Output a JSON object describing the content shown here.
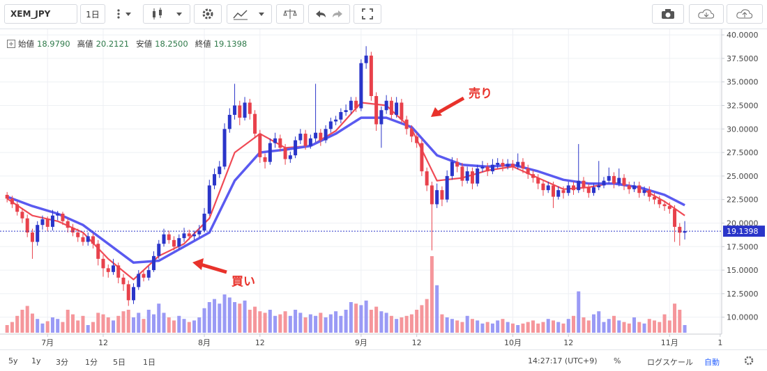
{
  "chart_data": {
    "type": "candlestick",
    "symbol": "XEM_JPY",
    "interval": "1日",
    "ohlc_legend": [
      {
        "label": "始値",
        "value": "18.9790"
      },
      {
        "label": "高値",
        "value": "20.2121"
      },
      {
        "label": "安値",
        "value": "18.2500"
      },
      {
        "label": "終値",
        "value": "19.1398"
      }
    ],
    "up_color": "#2a35c9",
    "down_color": "#e8414b",
    "vol_up_color": "#9a9af5",
    "vol_down_color": "#f5969b",
    "candles": [
      [
        23.0,
        23.3,
        22.2,
        22.6
      ],
      [
        22.6,
        22.9,
        21.6,
        22.0
      ],
      [
        22.0,
        22.3,
        20.8,
        21.2
      ],
      [
        21.2,
        21.6,
        20.0,
        20.5
      ],
      [
        20.5,
        20.9,
        18.5,
        19.0
      ],
      [
        19.0,
        19.4,
        16.2,
        18.0
      ],
      [
        18.0,
        20.2,
        17.6,
        19.8
      ],
      [
        19.8,
        20.8,
        19.3,
        20.4
      ],
      [
        20.4,
        20.7,
        19.1,
        19.6
      ],
      [
        19.6,
        21.4,
        19.2,
        20.8
      ],
      [
        20.8,
        21.3,
        20.3,
        21.0
      ],
      [
        21.0,
        21.2,
        19.8,
        20.2
      ],
      [
        20.2,
        20.5,
        19.0,
        19.5
      ],
      [
        19.5,
        19.9,
        18.6,
        19.0
      ],
      [
        19.0,
        19.4,
        18.0,
        18.5
      ],
      [
        18.5,
        18.9,
        17.6,
        18.0
      ],
      [
        18.0,
        19.0,
        17.6,
        18.6
      ],
      [
        18.6,
        18.9,
        17.3,
        17.8
      ],
      [
        17.8,
        18.2,
        15.5,
        16.2
      ],
      [
        16.2,
        16.6,
        14.3,
        15.2
      ],
      [
        15.2,
        15.6,
        14.2,
        14.8
      ],
      [
        14.8,
        16.2,
        14.5,
        15.5
      ],
      [
        15.5,
        15.8,
        13.6,
        14.2
      ],
      [
        14.2,
        14.6,
        12.8,
        13.5
      ],
      [
        13.5,
        13.9,
        11.2,
        11.8
      ],
      [
        11.8,
        13.6,
        11.4,
        13.2
      ],
      [
        13.2,
        15.0,
        12.9,
        14.6
      ],
      [
        14.6,
        15.0,
        13.8,
        14.2
      ],
      [
        14.2,
        15.4,
        13.9,
        15.0
      ],
      [
        15.0,
        17.0,
        14.8,
        16.5
      ],
      [
        16.5,
        18.2,
        16.2,
        17.8
      ],
      [
        17.8,
        19.4,
        17.5,
        18.8
      ],
      [
        18.8,
        19.2,
        17.8,
        18.2
      ],
      [
        18.2,
        18.6,
        17.1,
        17.5
      ],
      [
        17.5,
        18.8,
        17.2,
        18.4
      ],
      [
        18.4,
        19.5,
        18.0,
        18.9
      ],
      [
        18.9,
        19.3,
        18.2,
        18.6
      ],
      [
        18.6,
        19.2,
        18.2,
        18.8
      ],
      [
        18.8,
        19.8,
        18.5,
        19.2
      ],
      [
        19.2,
        21.6,
        19.0,
        21.0
      ],
      [
        21.0,
        24.6,
        20.8,
        24.0
      ],
      [
        24.0,
        25.8,
        23.6,
        25.2
      ],
      [
        25.2,
        26.6,
        24.8,
        26.0
      ],
      [
        26.0,
        30.6,
        25.7,
        30.0
      ],
      [
        30.0,
        32.2,
        29.6,
        31.5
      ],
      [
        31.5,
        34.8,
        31.0,
        32.5
      ],
      [
        32.5,
        33.0,
        30.4,
        31.2
      ],
      [
        31.2,
        33.4,
        30.9,
        32.8
      ],
      [
        32.8,
        33.2,
        31.0,
        31.6
      ],
      [
        31.6,
        32.0,
        29.0,
        29.5
      ],
      [
        29.5,
        29.9,
        26.4,
        27.0
      ],
      [
        27.0,
        27.4,
        25.8,
        26.5
      ],
      [
        26.5,
        29.0,
        26.2,
        28.5
      ],
      [
        28.5,
        29.6,
        28.0,
        29.0
      ],
      [
        29.0,
        29.4,
        27.6,
        28.0
      ],
      [
        28.0,
        28.4,
        26.2,
        26.8
      ],
      [
        26.8,
        27.6,
        26.4,
        27.2
      ],
      [
        27.2,
        29.2,
        26.9,
        28.8
      ],
      [
        28.8,
        30.0,
        28.4,
        29.5
      ],
      [
        29.5,
        29.9,
        27.8,
        28.2
      ],
      [
        28.2,
        29.4,
        27.9,
        29.0
      ],
      [
        29.0,
        34.8,
        28.6,
        29.6
      ],
      [
        29.6,
        30.0,
        28.2,
        28.8
      ],
      [
        28.8,
        30.4,
        28.5,
        30.0
      ],
      [
        30.0,
        31.2,
        29.6,
        30.8
      ],
      [
        30.8,
        31.4,
        30.4,
        31.0
      ],
      [
        31.0,
        32.2,
        30.6,
        31.8
      ],
      [
        31.8,
        32.6,
        31.4,
        32.0
      ],
      [
        32.0,
        33.4,
        31.6,
        33.0
      ],
      [
        33.0,
        33.4,
        31.8,
        32.2
      ],
      [
        32.2,
        37.4,
        31.9,
        37.0
      ],
      [
        37.0,
        38.8,
        36.4,
        37.8
      ],
      [
        37.8,
        38.2,
        33.0,
        33.5
      ],
      [
        33.5,
        33.9,
        29.8,
        30.5
      ],
      [
        30.5,
        32.4,
        28.0,
        32.0
      ],
      [
        32.0,
        33.6,
        31.6,
        33.0
      ],
      [
        33.0,
        33.4,
        31.0,
        31.5
      ],
      [
        31.5,
        33.4,
        31.2,
        32.8
      ],
      [
        32.8,
        33.2,
        30.6,
        31.0
      ],
      [
        31.0,
        31.4,
        29.4,
        30.0
      ],
      [
        30.0,
        30.4,
        28.6,
        29.2
      ],
      [
        29.2,
        29.6,
        28.0,
        28.5
      ],
      [
        28.5,
        28.9,
        25.0,
        25.5
      ],
      [
        25.5,
        25.9,
        23.4,
        24.0
      ],
      [
        24.0,
        24.4,
        17.1,
        22.0
      ],
      [
        22.0,
        24.2,
        21.6,
        23.5
      ],
      [
        23.5,
        23.9,
        21.8,
        22.5
      ],
      [
        22.5,
        25.6,
        22.2,
        25.0
      ],
      [
        25.0,
        27.0,
        24.6,
        26.5
      ],
      [
        26.5,
        26.9,
        25.4,
        26.0
      ],
      [
        26.0,
        26.4,
        23.9,
        24.5
      ],
      [
        24.5,
        26.0,
        24.2,
        25.5
      ],
      [
        25.5,
        25.9,
        23.6,
        24.2
      ],
      [
        24.2,
        26.2,
        23.9,
        25.8
      ],
      [
        25.8,
        26.6,
        25.4,
        26.0
      ],
      [
        26.0,
        26.4,
        25.0,
        25.5
      ],
      [
        25.5,
        26.8,
        25.2,
        26.2
      ],
      [
        26.2,
        26.9,
        25.8,
        26.4
      ],
      [
        26.4,
        26.8,
        25.5,
        26.0
      ],
      [
        26.0,
        26.8,
        25.7,
        26.3
      ],
      [
        26.3,
        26.7,
        25.6,
        26.0
      ],
      [
        26.0,
        27.4,
        25.7,
        26.5
      ],
      [
        26.5,
        26.9,
        25.3,
        25.8
      ],
      [
        25.8,
        26.2,
        24.7,
        25.2
      ],
      [
        25.2,
        25.6,
        24.3,
        24.8
      ],
      [
        24.8,
        25.2,
        23.6,
        24.2
      ],
      [
        24.2,
        24.6,
        22.9,
        23.5
      ],
      [
        23.5,
        24.4,
        23.2,
        24.0
      ],
      [
        24.0,
        24.4,
        21.6,
        22.8
      ],
      [
        22.8,
        23.9,
        22.5,
        23.5
      ],
      [
        23.5,
        23.9,
        22.6,
        23.2
      ],
      [
        23.2,
        24.4,
        22.9,
        24.0
      ],
      [
        24.0,
        24.4,
        23.0,
        23.5
      ],
      [
        23.5,
        28.4,
        23.2,
        24.5
      ],
      [
        24.5,
        24.9,
        23.3,
        23.8
      ],
      [
        23.8,
        24.2,
        22.7,
        23.2
      ],
      [
        23.2,
        24.2,
        22.9,
        23.8
      ],
      [
        23.8,
        26.6,
        23.5,
        24.0
      ],
      [
        24.0,
        24.9,
        23.7,
        24.5
      ],
      [
        24.5,
        25.9,
        24.2,
        25.0
      ],
      [
        25.0,
        25.4,
        23.7,
        24.2
      ],
      [
        24.2,
        25.8,
        23.9,
        24.8
      ],
      [
        24.8,
        25.2,
        23.5,
        24.0
      ],
      [
        24.0,
        24.4,
        23.1,
        23.6
      ],
      [
        23.6,
        24.4,
        23.3,
        24.0
      ],
      [
        24.0,
        24.4,
        22.7,
        23.2
      ],
      [
        23.2,
        23.9,
        22.9,
        23.5
      ],
      [
        23.5,
        23.9,
        22.3,
        22.8
      ],
      [
        22.8,
        23.2,
        22.0,
        22.5
      ],
      [
        22.5,
        22.9,
        21.6,
        22.0
      ],
      [
        22.0,
        22.4,
        21.3,
        21.8
      ],
      [
        21.8,
        22.2,
        21.0,
        21.5
      ],
      [
        21.5,
        21.9,
        18.0,
        19.6
      ],
      [
        19.6,
        20.0,
        17.6,
        18.98
      ],
      [
        18.979,
        20.2121,
        18.25,
        19.1398
      ]
    ],
    "volume": [
      10,
      14,
      22,
      30,
      35,
      25,
      18,
      12,
      15,
      20,
      18,
      14,
      30,
      24,
      16,
      22,
      10,
      14,
      26,
      24,
      20,
      16,
      22,
      28,
      30,
      20,
      26,
      18,
      30,
      24,
      38,
      26,
      20,
      16,
      22,
      18,
      14,
      16,
      20,
      32,
      40,
      44,
      38,
      50,
      46,
      40,
      38,
      42,
      30,
      34,
      28,
      26,
      30,
      22,
      24,
      28,
      22,
      30,
      26,
      20,
      24,
      22,
      26,
      20,
      24,
      28,
      22,
      30,
      40,
      38,
      36,
      42,
      30,
      34,
      28,
      26,
      22,
      18,
      20,
      22,
      24,
      30,
      36,
      44,
      100,
      62,
      24,
      20,
      18,
      16,
      14,
      22,
      18,
      16,
      12,
      14,
      12,
      16,
      18,
      14,
      12,
      10,
      12,
      14,
      16,
      12,
      14,
      18,
      16,
      14,
      12,
      18,
      22,
      54,
      20,
      16,
      24,
      28,
      14,
      18,
      22,
      16,
      14,
      12,
      20,
      14,
      12,
      18,
      16,
      14,
      24,
      16,
      38,
      30,
      10
    ],
    "moving_averages": [
      {
        "color": "#f04a55",
        "x": [
          0,
          5,
          10,
          15,
          20,
          25,
          30,
          35,
          40,
          45,
          50,
          55,
          60,
          65,
          70,
          75,
          80,
          85,
          90,
          95,
          100,
          105,
          110,
          115,
          120,
          125,
          130,
          134
        ],
        "values": [
          22.6,
          20.8,
          20.2,
          19.0,
          16.2,
          14.0,
          16.5,
          17.8,
          20.5,
          27.5,
          29.5,
          28.0,
          28.2,
          29.8,
          32.8,
          32.5,
          30.0,
          24.5,
          24.8,
          25.6,
          26.0,
          24.8,
          23.6,
          23.8,
          24.3,
          23.8,
          22.3,
          20.8
        ]
      },
      {
        "color": "#5a5af0",
        "x": [
          0,
          5,
          10,
          15,
          20,
          25,
          30,
          35,
          40,
          45,
          50,
          55,
          60,
          65,
          70,
          75,
          80,
          85,
          90,
          95,
          100,
          105,
          110,
          115,
          120,
          125,
          130,
          134
        ],
        "values": [
          22.8,
          21.8,
          21.0,
          19.8,
          17.8,
          15.8,
          16.0,
          17.5,
          19.0,
          24.5,
          27.5,
          27.8,
          28.2,
          29.5,
          31.2,
          31.2,
          30.2,
          27.2,
          26.2,
          26.0,
          26.2,
          25.5,
          24.6,
          24.2,
          24.2,
          23.8,
          23.0,
          21.9
        ]
      }
    ],
    "xlim": [
      -0.3,
      141.3
    ],
    "xticks": [
      {
        "value": 8,
        "label": "7月"
      },
      {
        "value": 19,
        "label": "12"
      },
      {
        "value": 39,
        "label": "8月"
      },
      {
        "value": 50,
        "label": "12"
      },
      {
        "value": 70,
        "label": "9月"
      },
      {
        "value": 81,
        "label": "12"
      },
      {
        "value": 100,
        "label": "10月"
      },
      {
        "value": 111,
        "label": "12"
      },
      {
        "value": 131,
        "label": "11月"
      },
      {
        "value": 141,
        "label": "1"
      }
    ],
    "ylim": [
      8.2,
      40.6
    ],
    "yticks": [
      {
        "value": 10,
        "label": "10.0000"
      },
      {
        "value": 12.5,
        "label": "12.5000"
      },
      {
        "value": 15,
        "label": "15.0000"
      },
      {
        "value": 17.5,
        "label": "17.5000"
      },
      {
        "value": 20,
        "label": "20.0000"
      },
      {
        "value": 22.5,
        "label": "22.5000"
      },
      {
        "value": 25,
        "label": "25.0000"
      },
      {
        "value": 27.5,
        "label": "27.5000"
      },
      {
        "value": 30,
        "label": "30.0000"
      },
      {
        "value": 32.5,
        "label": "32.5000"
      },
      {
        "value": 35,
        "label": "35.0000"
      },
      {
        "value": 37.5,
        "label": "37.5000"
      },
      {
        "value": 40,
        "label": "40.0000"
      }
    ],
    "vlim": [
      0,
      100
    ],
    "grid": true,
    "annotations": [
      {
        "text": "売り"
      },
      {
        "text": "買い"
      }
    ]
  },
  "toolbar": {
    "ranges": [
      "5y",
      "1y",
      "3分",
      "1分",
      "5日",
      "1日"
    ],
    "time": "14:27:17 (UTC+9)",
    "percent": "%",
    "log": "ログスケール",
    "auto": "自動"
  }
}
